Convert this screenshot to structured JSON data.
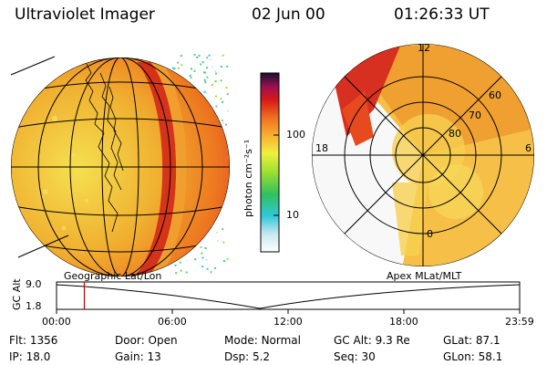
{
  "header": {
    "title": "Ultraviolet Imager",
    "date": "02 Jun 00",
    "time": "01:26:33 UT"
  },
  "colorbar": {
    "unit_label": "photon cm⁻²s⁻¹",
    "tick_100": "100",
    "tick_10": "10"
  },
  "left_panel": {
    "caption": "Geographic Lat/Lon"
  },
  "right_panel": {
    "caption": "Apex MLat/MLT",
    "mlt_labels": {
      "top": "12",
      "left": "18",
      "right": "6",
      "bottom": "0"
    },
    "lat_labels": {
      "r60": "60",
      "r70": "70",
      "r80": "80"
    }
  },
  "timeline": {
    "y_label": "GC Alt",
    "y_ticks": [
      "9.0",
      "1.8"
    ],
    "x_ticks": [
      "00:00",
      "06:00",
      "12:00",
      "18:00",
      "23:59"
    ],
    "cursor_time_fraction": 0.06,
    "colors": {
      "cursor": "#c00000"
    }
  },
  "status": {
    "row1": [
      {
        "label": "Flt:",
        "value": "1356"
      },
      {
        "label": "Door:",
        "value": "Open"
      },
      {
        "label": "Mode:",
        "value": "Normal"
      },
      {
        "label": "GC Alt:",
        "value": "9.3 Re"
      },
      {
        "label": "GLat:",
        "value": "87.1"
      }
    ],
    "row2": [
      {
        "label": "IP:",
        "value": "18.0"
      },
      {
        "label": "Gain:",
        "value": "13"
      },
      {
        "label": "Dsp:",
        "value": "5.2"
      },
      {
        "label": "Seq:",
        "value": "30"
      },
      {
        "label": "GLon:",
        "value": "58.1"
      }
    ]
  }
}
